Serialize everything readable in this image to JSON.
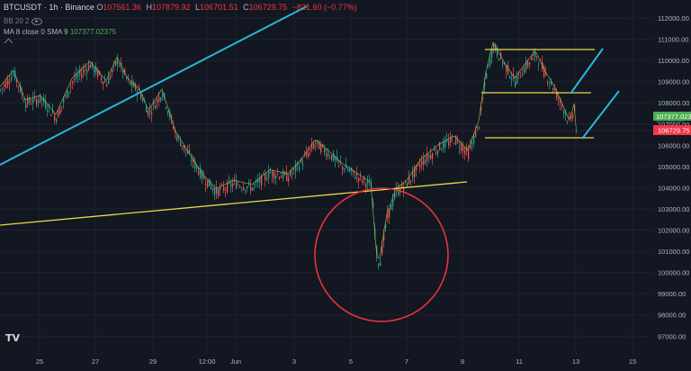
{
  "header": {
    "symbol": "BTCUSDT · 1h · Binance",
    "open_label": "O",
    "open": "107561.36",
    "high_label": "H",
    "high": "107879.92",
    "low_label": "L",
    "low": "106701.51",
    "close_label": "C",
    "close": "106729.75",
    "change": "−831.60 (−0.77%)"
  },
  "indicators": {
    "bb": "BB 20 2",
    "ma": "MA 8 close 0 SMA 9",
    "ma_value": "107377.02375"
  },
  "price_axis": {
    "ticks": [
      "112000.00",
      "111000.00",
      "110000.00",
      "109000.00",
      "108000.00",
      "107000.00",
      "106000.00",
      "105000.00",
      "104000.00",
      "103000.00",
      "102000.00",
      "101000.00",
      "100000.00",
      "99000.00",
      "98000.00",
      "97000.00"
    ],
    "ma_label": "107377.02375",
    "ma_label_short": "107377.0237",
    "last_price_label": "106729.75",
    "faint_label": "107500.00"
  },
  "time_axis": {
    "ticks": [
      "25",
      "27",
      "29",
      "12:00",
      "Jun",
      "3",
      "5",
      "7",
      "9",
      "11",
      "13",
      "15"
    ]
  },
  "logo": "TV",
  "colors": {
    "background": "#131722",
    "up": "#26a69a",
    "down": "#ef5350",
    "trendline_cyan": "#29b6d8",
    "trendline_yellow": "#e8d84a",
    "circle": "#e8333d",
    "ma_line": "#8bc34a"
  }
}
